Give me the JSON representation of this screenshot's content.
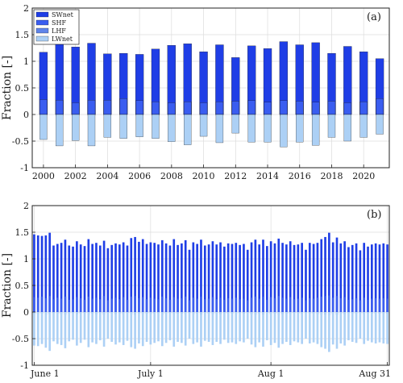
{
  "colors": {
    "SWnet": "#1f3ee6",
    "SHF": "#3a5df0",
    "LHF": "#5f84ea",
    "LWnet": "#acd0f5",
    "axis": "#222222",
    "grid": "#dcdcdc"
  },
  "chart_data": [
    {
      "type": "bar",
      "panel_label": "(a)",
      "ylabel": "Fraction [-]",
      "ylim": [
        -1,
        2
      ],
      "yticks": [
        "-1",
        "-0.5",
        "0",
        "0.5",
        "1",
        "1.5",
        "2"
      ],
      "xticks": [
        "2000",
        "2002",
        "2004",
        "2006",
        "2008",
        "2010",
        "2012",
        "2014",
        "2016",
        "2018",
        "2020"
      ],
      "xrange": [
        1999.3,
        2021.6
      ],
      "grid": true,
      "legend": "top-left",
      "legend_entries": [
        "SWnet",
        "SHF",
        "LHF",
        "LWnet"
      ],
      "categories": [
        2000,
        2001,
        2002,
        2003,
        2004,
        2005,
        2006,
        2007,
        2008,
        2009,
        2010,
        2011,
        2012,
        2013,
        2014,
        2015,
        2016,
        2017,
        2018,
        2019,
        2020,
        2021
      ],
      "series": [
        {
          "name": "SWnet",
          "values": [
            1.17,
            1.35,
            1.27,
            1.34,
            1.14,
            1.15,
            1.13,
            1.23,
            1.3,
            1.33,
            1.18,
            1.31,
            1.07,
            1.29,
            1.24,
            1.37,
            1.31,
            1.35,
            1.15,
            1.28,
            1.18,
            1.05
          ]
        },
        {
          "name": "SHF",
          "values": [
            0.28,
            0.27,
            0.22,
            0.27,
            0.27,
            0.3,
            0.26,
            0.24,
            0.22,
            0.24,
            0.22,
            0.24,
            0.25,
            0.26,
            0.23,
            0.26,
            0.25,
            0.23,
            0.25,
            0.22,
            0.24,
            0.3
          ]
        },
        {
          "name": "LHF",
          "values": [
            0.0,
            -0.03,
            -0.02,
            -0.02,
            -0.02,
            -0.01,
            -0.02,
            -0.02,
            -0.02,
            -0.02,
            -0.02,
            -0.02,
            -0.01,
            -0.02,
            -0.02,
            -0.03,
            -0.02,
            -0.03,
            -0.02,
            -0.02,
            -0.02,
            -0.01
          ]
        },
        {
          "name": "LWnet",
          "values": [
            -0.47,
            -0.59,
            -0.49,
            -0.59,
            -0.43,
            -0.45,
            -0.42,
            -0.45,
            -0.51,
            -0.57,
            -0.41,
            -0.53,
            -0.35,
            -0.52,
            -0.52,
            -0.61,
            -0.52,
            -0.58,
            -0.43,
            -0.5,
            -0.43,
            -0.37
          ]
        }
      ]
    },
    {
      "type": "bar",
      "panel_label": "(b)",
      "ylabel": "Fraction [-]",
      "ylim": [
        -1,
        2
      ],
      "yticks": [
        "-1",
        "-0.5",
        "0",
        "0.5",
        "1",
        "1.5",
        "2"
      ],
      "xticks": [
        "June 1",
        "July 1",
        "Aug 1",
        "Aug 31"
      ],
      "grid": true,
      "series": [
        {
          "name": "SWnet",
          "values": [
            1.46,
            1.44,
            1.43,
            1.44,
            1.49,
            1.25,
            1.28,
            1.3,
            1.36,
            1.25,
            1.23,
            1.33,
            1.27,
            1.24,
            1.37,
            1.28,
            1.3,
            1.25,
            1.34,
            1.2,
            1.26,
            1.29,
            1.27,
            1.31,
            1.25,
            1.39,
            1.41,
            1.32,
            1.37,
            1.28,
            1.31,
            1.3,
            1.27,
            1.35,
            1.29,
            1.25,
            1.37,
            1.26,
            1.29,
            1.35,
            1.17,
            1.31,
            1.28,
            1.36,
            1.25,
            1.27,
            1.33,
            1.27,
            1.31,
            1.23,
            1.29,
            1.28,
            1.3,
            1.26,
            1.28,
            1.17,
            1.31,
            1.36,
            1.27,
            1.36,
            1.24,
            1.33,
            1.29,
            1.38,
            1.3,
            1.27,
            1.33,
            1.26,
            1.27,
            1.3,
            1.17,
            1.3,
            1.28,
            1.3,
            1.37,
            1.41,
            1.49,
            1.31,
            1.4,
            1.29,
            1.33,
            1.22,
            1.26,
            1.29,
            1.16,
            1.3,
            1.23,
            1.27,
            1.29,
            1.27,
            1.29,
            1.27
          ]
        },
        {
          "name": "SHF",
          "values": [
            0.28,
            0.27,
            0.29,
            0.26,
            0.3,
            0.24,
            0.27,
            0.25,
            0.29,
            0.23,
            0.24,
            0.28,
            0.26,
            0.23,
            0.29,
            0.25,
            0.27,
            0.24,
            0.3,
            0.22,
            0.25,
            0.27,
            0.24,
            0.28,
            0.23,
            0.29,
            0.3,
            0.26,
            0.28,
            0.24,
            0.27,
            0.25,
            0.24,
            0.29,
            0.26,
            0.23,
            0.28,
            0.25,
            0.26,
            0.29,
            0.22,
            0.27,
            0.25,
            0.29,
            0.24,
            0.25,
            0.28,
            0.24,
            0.27,
            0.23,
            0.26,
            0.25,
            0.27,
            0.24,
            0.25,
            0.22,
            0.27,
            0.29,
            0.25,
            0.29,
            0.23,
            0.28,
            0.26,
            0.3,
            0.27,
            0.25,
            0.28,
            0.24,
            0.25,
            0.27,
            0.22,
            0.26,
            0.25,
            0.27,
            0.29,
            0.3,
            0.31,
            0.27,
            0.3,
            0.26,
            0.28,
            0.23,
            0.24,
            0.26,
            0.22,
            0.27,
            0.23,
            0.25,
            0.26,
            0.25,
            0.26,
            0.25
          ]
        },
        {
          "name": "LHF",
          "values": [
            -0.03,
            -0.04,
            -0.03,
            -0.05,
            -0.04,
            -0.02,
            -0.03,
            -0.04,
            -0.05,
            -0.03,
            -0.02,
            -0.04,
            -0.03,
            -0.02,
            -0.05,
            -0.03,
            -0.04,
            -0.02,
            -0.05,
            -0.02,
            -0.03,
            -0.04,
            -0.03,
            -0.04,
            -0.02,
            -0.05,
            -0.05,
            -0.03,
            -0.04,
            -0.03,
            -0.04,
            -0.03,
            -0.02,
            -0.05,
            -0.03,
            -0.02,
            -0.04,
            -0.03,
            -0.03,
            -0.04,
            -0.02,
            -0.04,
            -0.03,
            -0.05,
            -0.02,
            -0.03,
            -0.04,
            -0.03,
            -0.04,
            -0.02,
            -0.03,
            -0.03,
            -0.04,
            -0.02,
            -0.03,
            -0.02,
            -0.04,
            -0.05,
            -0.03,
            -0.05,
            -0.02,
            -0.04,
            -0.03,
            -0.05,
            -0.04,
            -0.03,
            -0.04,
            -0.02,
            -0.03,
            -0.04,
            -0.02,
            -0.03,
            -0.03,
            -0.04,
            -0.05,
            -0.05,
            -0.06,
            -0.04,
            -0.05,
            -0.03,
            -0.04,
            -0.02,
            -0.03,
            -0.03,
            -0.02,
            -0.04,
            -0.02,
            -0.03,
            -0.03,
            -0.03,
            -0.03,
            -0.03
          ]
        },
        {
          "name": "LWnet",
          "values": [
            -0.63,
            -0.64,
            -0.6,
            -0.67,
            -0.73,
            -0.55,
            -0.6,
            -0.62,
            -0.68,
            -0.55,
            -0.52,
            -0.63,
            -0.58,
            -0.52,
            -0.66,
            -0.57,
            -0.6,
            -0.53,
            -0.65,
            -0.5,
            -0.56,
            -0.61,
            -0.57,
            -0.62,
            -0.54,
            -0.66,
            -0.69,
            -0.59,
            -0.64,
            -0.56,
            -0.61,
            -0.58,
            -0.55,
            -0.64,
            -0.58,
            -0.53,
            -0.65,
            -0.56,
            -0.58,
            -0.63,
            -0.5,
            -0.6,
            -0.57,
            -0.65,
            -0.54,
            -0.56,
            -0.62,
            -0.56,
            -0.6,
            -0.52,
            -0.58,
            -0.57,
            -0.6,
            -0.55,
            -0.57,
            -0.5,
            -0.61,
            -0.66,
            -0.57,
            -0.65,
            -0.53,
            -0.62,
            -0.58,
            -0.67,
            -0.6,
            -0.56,
            -0.62,
            -0.55,
            -0.57,
            -0.6,
            -0.5,
            -0.59,
            -0.57,
            -0.6,
            -0.66,
            -0.69,
            -0.75,
            -0.61,
            -0.69,
            -0.59,
            -0.63,
            -0.53,
            -0.56,
            -0.58,
            -0.5,
            -0.6,
            -0.54,
            -0.57,
            -0.59,
            -0.57,
            -0.59,
            -0.6
          ]
        }
      ]
    }
  ]
}
